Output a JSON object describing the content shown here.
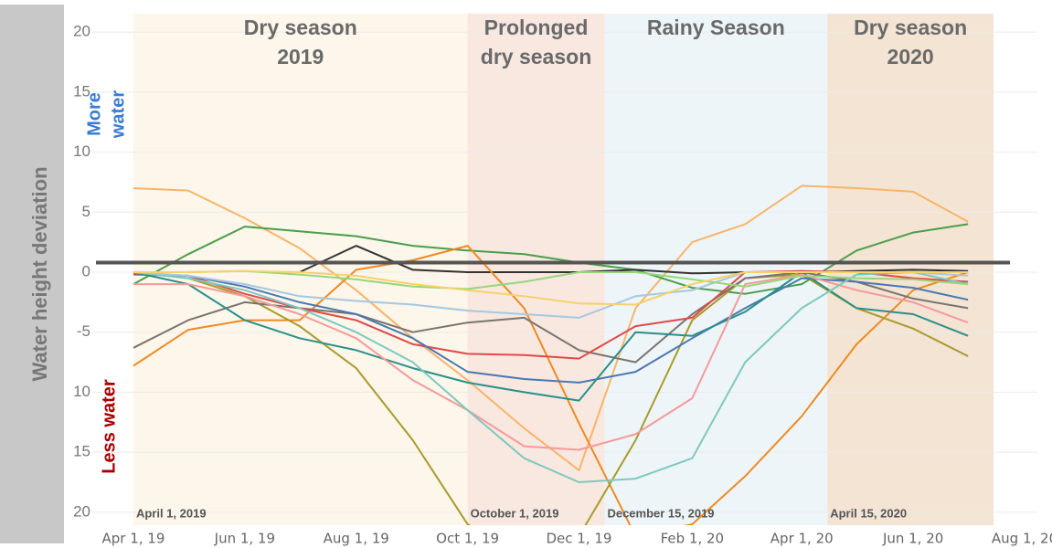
{
  "chart_data": {
    "type": "line",
    "y_label": "Water height deviation",
    "annotations": {
      "more": [
        "More",
        "water"
      ],
      "less": "Less water"
    },
    "regions": [
      {
        "label": [
          "Dry season",
          "2019"
        ],
        "date_label": "April 1, 2019",
        "start": "2019-04-01",
        "end": "2019-10-01",
        "color": "#fdf6ea"
      },
      {
        "label": [
          "Prolonged",
          "dry season"
        ],
        "date_label": "October 1, 2019",
        "start": "2019-10-01",
        "end": "2019-12-15",
        "color": "#f8e8e0"
      },
      {
        "label": [
          "Rainy Season"
        ],
        "date_label": "December 15, 2019",
        "start": "2019-12-15",
        "end": "2020-04-15",
        "color": "#eef5f8"
      },
      {
        "label": [
          "Dry season",
          "2020"
        ],
        "date_label": "April 15, 2020",
        "start": "2020-04-15",
        "end": "2020-07-15",
        "color": "#f3e4d3"
      }
    ],
    "hline": 0.8,
    "hline_color": "#555555",
    "x": [
      "2019-04-01",
      "2019-05-01",
      "2019-06-01",
      "2019-07-01",
      "2019-08-01",
      "2019-09-01",
      "2019-10-01",
      "2019-11-01",
      "2019-12-01",
      "2020-01-01",
      "2020-02-01",
      "2020-03-01",
      "2020-04-01",
      "2020-05-01",
      "2020-06-01",
      "2020-07-01"
    ],
    "series": [
      {
        "color": "#f9b46a",
        "values": [
          7,
          6.8,
          4.5,
          2,
          -1.5,
          -5.5,
          -9,
          -13,
          -16.5,
          -3,
          2.5,
          4,
          7.2,
          7,
          6.7,
          4.2
        ]
      },
      {
        "color": "#4a9e4a",
        "values": [
          -1,
          1.5,
          3.8,
          3.4,
          3,
          2.2,
          1.8,
          1.5,
          0.8,
          0.2,
          -1.3,
          -1.8,
          -1,
          1.8,
          3.3,
          4
        ]
      },
      {
        "color": "#333333",
        "values": [
          null,
          null,
          null,
          0,
          2.2,
          0.2,
          0,
          0,
          0,
          0.2,
          -0.1,
          0,
          0,
          0.1,
          0.2,
          0.1
        ]
      },
      {
        "color": "#ef8a22",
        "values": [
          -7.8,
          -4.8,
          -4,
          -4,
          0.2,
          1,
          2.2,
          -3,
          -12.6,
          -22,
          -21,
          -17,
          -12,
          -6,
          -1.5,
          0
        ]
      },
      {
        "color": "#a89b2a",
        "values": [
          0,
          -0.5,
          -2,
          -4.5,
          -8,
          -14,
          -21,
          -24,
          -22,
          -14,
          -4,
          -0.5,
          -0.2,
          -3,
          -4.7,
          -7
        ]
      },
      {
        "color": "#7a7470",
        "values": [
          -6.3,
          -4,
          -2.5,
          -3,
          -3.5,
          -5,
          -4.2,
          -3.8,
          -6.5,
          -7.5,
          -3.5,
          -0.5,
          0,
          -0.8,
          -2.2,
          -3
        ]
      },
      {
        "color": "#e04a4a",
        "values": [
          -0.2,
          -0.3,
          -1.8,
          -3,
          -4,
          -6,
          -6.8,
          -6.9,
          -7.2,
          -4.5,
          -3.8,
          0,
          0.1,
          0,
          -0.5,
          -0.8
        ]
      },
      {
        "color": "#4a78b0",
        "values": [
          -0.1,
          -0.3,
          -1.2,
          -2.5,
          -3.5,
          -5.5,
          -8.3,
          -8.9,
          -9.2,
          -8.3,
          -5.5,
          -3,
          -0.5,
          -0.8,
          -1.3,
          -2.3
        ]
      },
      {
        "color": "#2a8f8a",
        "values": [
          0,
          -1,
          -4,
          -5.5,
          -6.5,
          -8,
          -9.2,
          -10,
          -10.7,
          -5,
          -5.3,
          -3.3,
          0,
          -3,
          -3.5,
          -5.3
        ]
      },
      {
        "color": "#f59a9a",
        "values": [
          -1,
          -1,
          -2,
          -3.5,
          -5.5,
          -9,
          -11.5,
          -14.5,
          -14.8,
          -13.5,
          -10.5,
          -1,
          -0.2,
          -1.5,
          -2.5,
          -4.2
        ]
      },
      {
        "color": "#7ec8c0",
        "values": [
          0,
          -0.5,
          -1.5,
          -3,
          -5,
          -7.5,
          -11.5,
          -15.5,
          -17.5,
          -17.2,
          -15.5,
          -7.5,
          -3,
          -0.2,
          0,
          -1
        ]
      },
      {
        "color": "#a6c8e0",
        "values": [
          0,
          -0.3,
          -1,
          -2,
          -2.4,
          -2.7,
          -3.2,
          -3.5,
          -3.8,
          -2,
          -1.5,
          0,
          0,
          0,
          0,
          -0.3
        ]
      },
      {
        "color": "#98d67a",
        "values": [
          0,
          0,
          0.1,
          -0.2,
          -0.6,
          -1.2,
          -1.4,
          -0.8,
          0,
          0,
          -0.6,
          -1.2,
          -0.3,
          -0.5,
          -0.6,
          -1
        ]
      },
      {
        "color": "#f5d26a",
        "values": [
          0,
          0,
          0.1,
          0,
          -0.3,
          -1,
          -1.5,
          -2,
          -2.6,
          -2.7,
          -1,
          0,
          0,
          0,
          0,
          0
        ]
      }
    ],
    "xlim": [
      "2019-03-09",
      "2020-08-08"
    ],
    "xticks": [
      {
        "value": "2019-04-01",
        "label": "Apr 1, 19"
      },
      {
        "value": "2019-06-01",
        "label": "Jun 1, 19"
      },
      {
        "value": "2019-08-01",
        "label": "Aug 1, 19"
      },
      {
        "value": "2019-10-01",
        "label": "Oct 1, 19"
      },
      {
        "value": "2019-12-01",
        "label": "Dec 1, 19"
      },
      {
        "value": "2020-02-01",
        "label": "Feb 1, 20"
      },
      {
        "value": "2020-04-01",
        "label": "Apr 1, 20"
      },
      {
        "value": "2020-06-01",
        "label": "Jun 1, 20"
      },
      {
        "value": "2020-08-01",
        "label": "Aug 1, 20"
      }
    ],
    "ylim": [
      -21,
      21
    ],
    "yticks": [
      20,
      15,
      10,
      5,
      0,
      -5,
      {
        "value": -10,
        "label": "10"
      },
      {
        "value": -15,
        "label": "15"
      },
      {
        "value": -20,
        "label": "20"
      }
    ],
    "grid": true
  }
}
